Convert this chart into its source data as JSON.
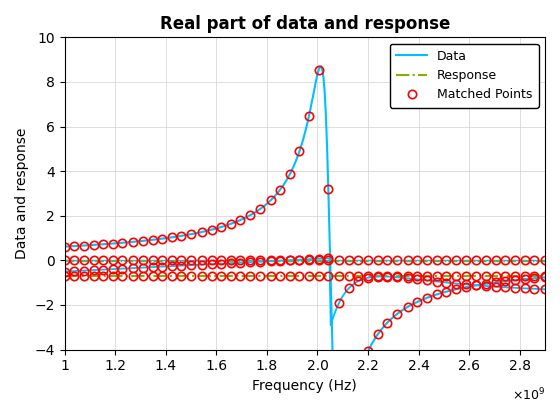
{
  "title": "Real part of data and response",
  "xlabel": "Frequency (Hz)",
  "ylabel": "Data and response",
  "xlim": [
    1000000000.0,
    2900000000.0
  ],
  "ylim": [
    -4,
    10
  ],
  "xticks": [
    1000000000.0,
    1200000000.0,
    1400000000.0,
    1600000000.0,
    1800000000.0,
    2000000000.0,
    2200000000.0,
    2400000000.0,
    2600000000.0,
    2800000000.0
  ],
  "yticks": [
    -4,
    -2,
    0,
    2,
    4,
    6,
    8,
    10
  ],
  "freq_start": 1000000000.0,
  "freq_end": 2900000000.0,
  "resonance": 2050000000.0,
  "data_color": "#00BFFF",
  "response_color": "#80B000",
  "marker_color": "#FF0000",
  "legend_labels": [
    "Data",
    "Response",
    "Matched Points"
  ],
  "background_color": "#FFFFFF"
}
